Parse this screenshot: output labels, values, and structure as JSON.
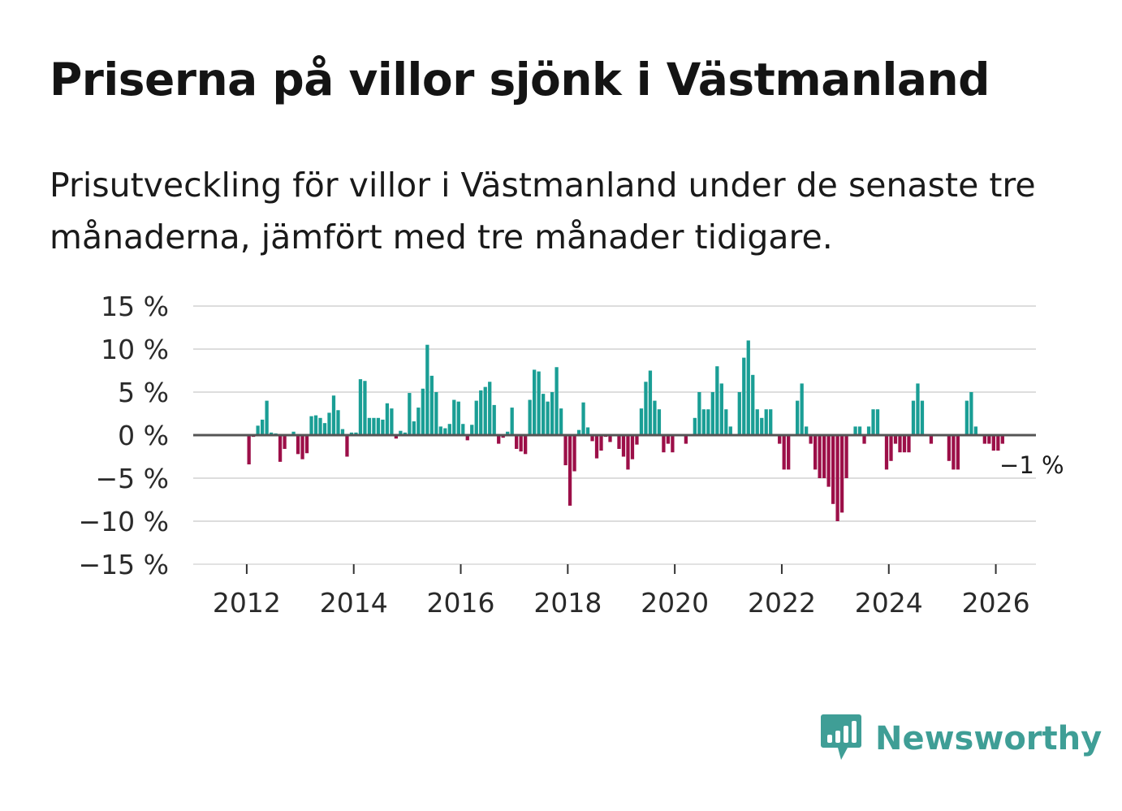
{
  "title": "Priserna på villor sjönk i Västmanland",
  "subtitle": "Prisutveckling för villor i Västmanland under de senaste tre månaderna, jämfört med tre månader tidigare.",
  "brand": {
    "name": "Newsworthy",
    "icon": "newsworthy-logo-icon",
    "color": "#3f9e96"
  },
  "colors": {
    "positive": "#1a9e95",
    "negative": "#9c0f48",
    "grid": "#dddddd",
    "zero": "#555555"
  },
  "chart_data": {
    "type": "bar",
    "title": "Priserna på villor sjönk i Västmanland",
    "xlabel": "",
    "ylabel": "",
    "ylim": [
      -15,
      15
    ],
    "xlim": [
      2011.0,
      2026.75
    ],
    "y_ticks": [
      15,
      10,
      5,
      0,
      -5,
      -10,
      -15
    ],
    "y_tick_labels": [
      "15 %",
      "10 %",
      "5 %",
      "0 %",
      "−5 %",
      "−10 %",
      "−15 %"
    ],
    "x_ticks": [
      2012,
      2014,
      2016,
      2018,
      2020,
      2022,
      2024,
      2026
    ],
    "x_tick_labels": [
      "2012",
      "2014",
      "2016",
      "2018",
      "2020",
      "2022",
      "2024",
      "2026"
    ],
    "start": {
      "year": 2012,
      "month": 1
    },
    "last_value_label": "−1 %",
    "series": [
      {
        "name": "Prisutveckling",
        "values": [
          -3.4,
          -0.2,
          1.1,
          1.8,
          4.0,
          0.3,
          0.2,
          -3.1,
          -1.6,
          0.0,
          0.4,
          -2.2,
          -2.8,
          -2.1,
          2.2,
          2.3,
          2.0,
          1.4,
          2.6,
          4.6,
          2.9,
          0.7,
          -2.5,
          0.3,
          0.3,
          6.5,
          6.3,
          2.0,
          2.0,
          2.0,
          1.8,
          3.7,
          3.1,
          -0.4,
          0.5,
          0.3,
          4.9,
          1.6,
          3.2,
          5.4,
          10.5,
          6.9,
          5.0,
          1.0,
          0.8,
          1.3,
          4.1,
          3.9,
          1.3,
          -0.6,
          1.2,
          4.0,
          5.2,
          5.6,
          6.2,
          3.5,
          -1.0,
          -0.3,
          0.4,
          3.2,
          -1.6,
          -1.9,
          -2.2,
          4.1,
          7.6,
          7.4,
          4.8,
          3.9,
          5.0,
          7.9,
          3.1,
          -3.5,
          -8.2,
          -4.2,
          0.6,
          3.8,
          0.9,
          -0.7,
          -2.7,
          -1.8,
          -0.2,
          -0.8,
          0.0,
          -1.6,
          -2.5,
          -4.0,
          -2.8,
          -1.1,
          3.1,
          6.2,
          7.5,
          4.0,
          3.0,
          -2.0,
          -1.0,
          -2.0,
          0.0,
          0.0,
          -1.0,
          0.0,
          2.0,
          5.0,
          3.0,
          3.0,
          5.0,
          8.0,
          6.0,
          3.0,
          1.0,
          0.0,
          5.0,
          9.0,
          11.0,
          7.0,
          3.0,
          2.0,
          3.0,
          3.0,
          0.0,
          -1.0,
          -4.0,
          -4.0,
          0.0,
          4.0,
          6.0,
          1.0,
          -1.0,
          -4.0,
          -5.0,
          -5.0,
          -6.0,
          -8.0,
          -10.0,
          -9.0,
          -5.0,
          0.0,
          1.0,
          1.0,
          -1.0,
          1.0,
          3.0,
          3.0,
          0.0,
          -4.0,
          -3.0,
          -1.0,
          -2.0,
          -2.0,
          -2.0,
          4.0,
          6.0,
          4.0,
          0.0,
          -1.0,
          0.0,
          0.0,
          0.0,
          -3.0,
          -4.0,
          -4.0,
          0.0,
          4.0,
          5.0,
          1.0,
          0.0,
          -1.0,
          -1.0,
          -1.8,
          -1.8,
          -1.0
        ]
      }
    ]
  }
}
